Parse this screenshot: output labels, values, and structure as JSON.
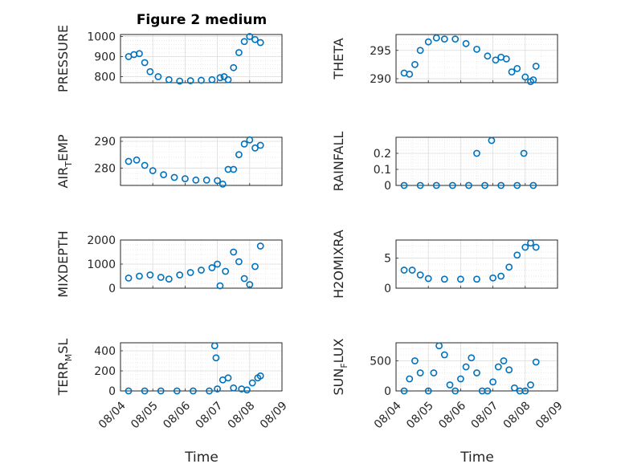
{
  "figure": {
    "title": "Figure 2 medium",
    "x_tick_labels": [
      "08/04",
      "08/05",
      "08/06",
      "08/07",
      "08/08",
      "08/09"
    ],
    "x_label": "Time",
    "marker_color": "#0072BD"
  },
  "chart_data": [
    {
      "type": "scatter",
      "ylabel": "PRESSURE",
      "ylabel_sub": "",
      "ylim": [
        770,
        1010
      ],
      "yticks": [
        800,
        900,
        1000
      ],
      "x": [
        "2022-08-04 06:00",
        "2022-08-04 10:00",
        "2022-08-04 14:00",
        "2022-08-04 18:00",
        "2022-08-04 22:00",
        "2022-08-05 04:00",
        "2022-08-05 12:00",
        "2022-08-05 20:00",
        "2022-08-06 04:00",
        "2022-08-06 12:00",
        "2022-08-06 20:00",
        "2022-08-07 02:00",
        "2022-08-07 05:00",
        "2022-08-07 08:00",
        "2022-08-07 12:00",
        "2022-08-07 16:00",
        "2022-08-07 20:00",
        "2022-08-08 00:00",
        "2022-08-08 04:00",
        "2022-08-08 08:00"
      ],
      "y": [
        900,
        910,
        915,
        870,
        825,
        800,
        785,
        778,
        780,
        782,
        785,
        795,
        800,
        785,
        845,
        920,
        975,
        1000,
        985,
        970
      ]
    },
    {
      "type": "scatter",
      "ylabel": "THETA",
      "ylabel_sub": "",
      "ylim": [
        289.3,
        297.8
      ],
      "yticks": [
        290,
        295
      ],
      "x": [
        "2022-08-04 06:00",
        "2022-08-04 10:00",
        "2022-08-04 14:00",
        "2022-08-04 18:00",
        "2022-08-05 00:00",
        "2022-08-05 06:00",
        "2022-08-05 12:00",
        "2022-08-05 20:00",
        "2022-08-06 04:00",
        "2022-08-06 12:00",
        "2022-08-06 20:00",
        "2022-08-07 02:00",
        "2022-08-07 06:00",
        "2022-08-07 10:00",
        "2022-08-07 14:00",
        "2022-08-07 18:00",
        "2022-08-08 00:00",
        "2022-08-08 04:00",
        "2022-08-08 06:00",
        "2022-08-08 08:00"
      ],
      "y": [
        291,
        290.8,
        292.5,
        295,
        296.5,
        297.2,
        297,
        297,
        296.2,
        295.2,
        294,
        293.3,
        293.8,
        293.5,
        291.2,
        291.8,
        290.3,
        289.5,
        289.8,
        292.2
      ]
    },
    {
      "type": "scatter",
      "ylabel": "AIR",
      "ylabel_sub": "T",
      "ylabel_rest": "EMP",
      "ylim": [
        273.5,
        291.5
      ],
      "yticks": [
        280,
        290
      ],
      "x": [
        "2022-08-04 06:00",
        "2022-08-04 12:00",
        "2022-08-04 18:00",
        "2022-08-05 00:00",
        "2022-08-05 08:00",
        "2022-08-05 16:00",
        "2022-08-06 00:00",
        "2022-08-06 08:00",
        "2022-08-06 16:00",
        "2022-08-07 00:00",
        "2022-08-07 04:00",
        "2022-08-07 08:00",
        "2022-08-07 12:00",
        "2022-08-07 16:00",
        "2022-08-07 20:00",
        "2022-08-08 00:00",
        "2022-08-08 04:00",
        "2022-08-08 08:00"
      ],
      "y": [
        282.5,
        283,
        281,
        279,
        277.5,
        276.5,
        276,
        275.5,
        275.5,
        275.3,
        274,
        279.5,
        279.5,
        285,
        289,
        290.5,
        287.5,
        288.5
      ]
    },
    {
      "type": "scatter",
      "ylabel": "RAINFALL",
      "ylabel_sub": "",
      "ylim": [
        0,
        0.3
      ],
      "yticks": [
        0,
        0.1,
        0.2
      ],
      "x": [
        "2022-08-04 06:00",
        "2022-08-04 18:00",
        "2022-08-05 06:00",
        "2022-08-05 18:00",
        "2022-08-06 06:00",
        "2022-08-06 18:00",
        "2022-08-07 06:00",
        "2022-08-07 18:00",
        "2022-08-08 06:00",
        "2022-08-06 12:00",
        "2022-08-06 23:00",
        "2022-08-07 23:00"
      ],
      "y": [
        0,
        0,
        0,
        0,
        0,
        0,
        0,
        0,
        0,
        0.2,
        0.28,
        0.2
      ]
    },
    {
      "type": "scatter",
      "ylabel": "MIXDEPTH",
      "ylabel_sub": "",
      "ylim": [
        0,
        2000
      ],
      "yticks": [
        0,
        1000,
        2000
      ],
      "x": [
        "2022-08-04 06:00",
        "2022-08-04 14:00",
        "2022-08-04 22:00",
        "2022-08-05 06:00",
        "2022-08-05 12:00",
        "2022-08-05 20:00",
        "2022-08-06 04:00",
        "2022-08-06 12:00",
        "2022-08-06 20:00",
        "2022-08-07 00:00",
        "2022-08-07 02:00",
        "2022-08-07 06:00",
        "2022-08-07 12:00",
        "2022-08-07 16:00",
        "2022-08-07 20:00",
        "2022-08-08 00:00",
        "2022-08-08 04:00",
        "2022-08-08 08:00"
      ],
      "y": [
        420,
        500,
        550,
        450,
        380,
        550,
        650,
        750,
        850,
        1000,
        100,
        700,
        1500,
        1100,
        400,
        150,
        900,
        1750
      ]
    },
    {
      "type": "scatter",
      "ylabel": "H2OMIXRA",
      "ylabel_sub": "",
      "ylim": [
        0,
        8
      ],
      "yticks": [
        0,
        5
      ],
      "x": [
        "2022-08-04 06:00",
        "2022-08-04 12:00",
        "2022-08-04 18:00",
        "2022-08-05 00:00",
        "2022-08-05 12:00",
        "2022-08-06 00:00",
        "2022-08-06 12:00",
        "2022-08-07 00:00",
        "2022-08-07 06:00",
        "2022-08-07 12:00",
        "2022-08-07 18:00",
        "2022-08-08 00:00",
        "2022-08-08 04:00",
        "2022-08-08 08:00"
      ],
      "y": [
        3,
        3,
        2.2,
        1.6,
        1.5,
        1.5,
        1.5,
        1.7,
        2,
        3.5,
        5.5,
        6.8,
        7.5,
        6.8
      ]
    },
    {
      "type": "scatter",
      "ylabel": "TERR",
      "ylabel_sub": "M",
      "ylabel_rest": "SL",
      "ylim": [
        0,
        480
      ],
      "yticks": [
        0,
        200,
        400
      ],
      "x": [
        "2022-08-04 06:00",
        "2022-08-04 18:00",
        "2022-08-05 06:00",
        "2022-08-05 18:00",
        "2022-08-06 06:00",
        "2022-08-06 18:00",
        "2022-08-06 22:00",
        "2022-08-06 23:00",
        "2022-08-07 00:00",
        "2022-08-07 04:00",
        "2022-08-07 08:00",
        "2022-08-07 12:00",
        "2022-08-07 18:00",
        "2022-08-07 22:00",
        "2022-08-08 02:00",
        "2022-08-08 06:00",
        "2022-08-08 08:00"
      ],
      "y": [
        0,
        0,
        0,
        0,
        0,
        0,
        450,
        330,
        20,
        110,
        130,
        30,
        20,
        10,
        80,
        130,
        150
      ]
    },
    {
      "type": "scatter",
      "ylabel": "SUN",
      "ylabel_sub": "F",
      "ylabel_rest": "LUX",
      "ylim": [
        0,
        800
      ],
      "yticks": [
        0,
        500
      ],
      "x": [
        "2022-08-04 06:00",
        "2022-08-04 10:00",
        "2022-08-04 14:00",
        "2022-08-04 18:00",
        "2022-08-05 00:00",
        "2022-08-05 04:00",
        "2022-08-05 08:00",
        "2022-08-05 12:00",
        "2022-08-05 16:00",
        "2022-08-05 20:00",
        "2022-08-06 00:00",
        "2022-08-06 04:00",
        "2022-08-06 08:00",
        "2022-08-06 12:00",
        "2022-08-06 16:00",
        "2022-08-06 20:00",
        "2022-08-07 00:00",
        "2022-08-07 04:00",
        "2022-08-07 08:00",
        "2022-08-07 12:00",
        "2022-08-07 16:00",
        "2022-08-07 20:00",
        "2022-08-08 00:00",
        "2022-08-08 04:00",
        "2022-08-08 08:00"
      ],
      "y": [
        0,
        200,
        500,
        300,
        0,
        300,
        750,
        600,
        100,
        0,
        200,
        400,
        550,
        300,
        0,
        0,
        150,
        400,
        500,
        350,
        50,
        0,
        0,
        100,
        480
      ]
    }
  ]
}
